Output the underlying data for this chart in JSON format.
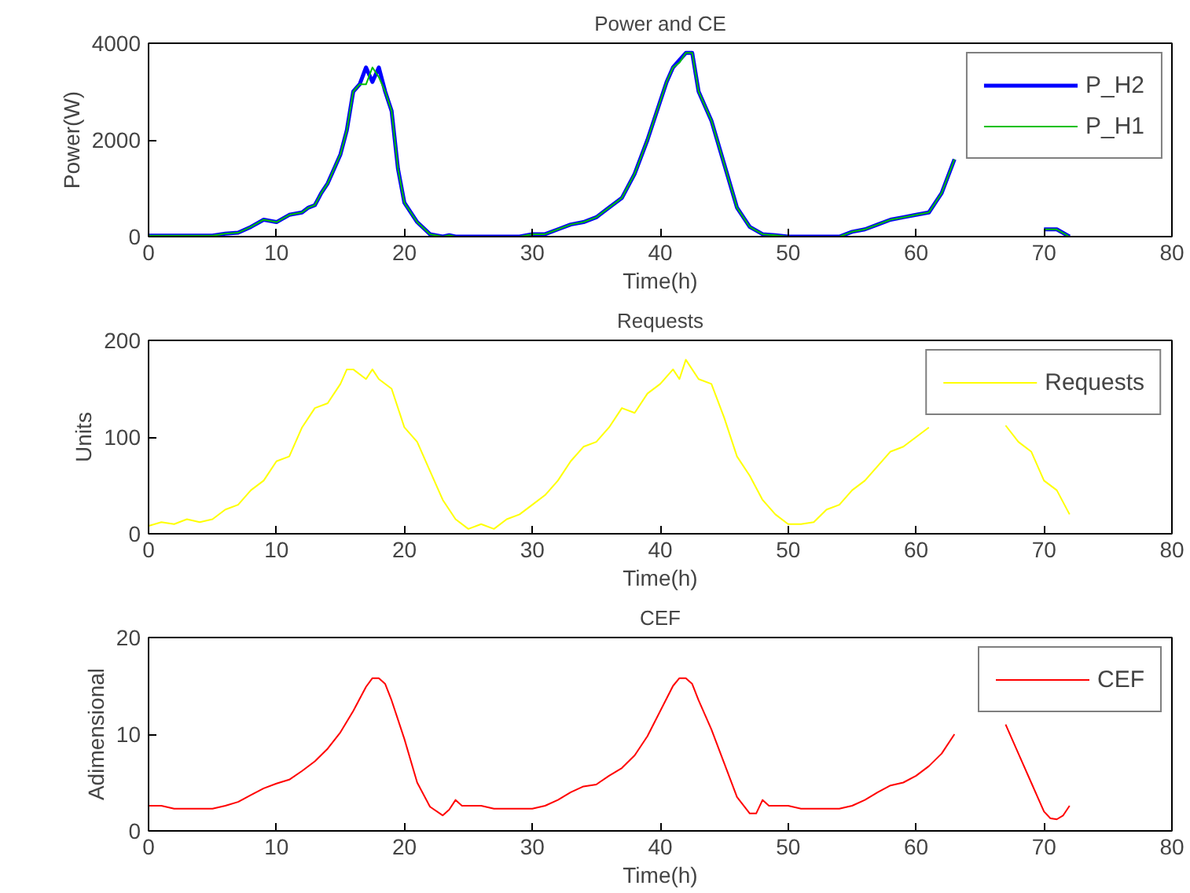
{
  "chart_data": [
    {
      "type": "line",
      "title": "Power and CE",
      "xlabel": "Time(h)",
      "ylabel": "Power(W)",
      "xlim": [
        0,
        80
      ],
      "ylim": [
        0,
        4000
      ],
      "xticks": [
        0,
        10,
        20,
        30,
        40,
        50,
        60,
        70,
        80
      ],
      "yticks": [
        0,
        2000,
        4000
      ],
      "grid": false,
      "legend": "top right",
      "x": [
        0,
        2,
        4,
        5,
        6,
        7,
        8,
        9,
        10,
        11,
        12,
        12.5,
        13,
        13.5,
        14,
        14.5,
        15,
        15.5,
        16,
        16.5,
        17,
        17.5,
        18,
        18.5,
        19,
        19.5,
        20,
        21,
        22,
        23,
        23.5,
        24,
        26,
        28,
        29,
        30,
        31,
        32,
        33,
        34,
        35,
        36,
        37,
        38,
        39,
        40,
        40.5,
        41,
        41.5,
        42,
        42.5,
        43,
        44,
        45,
        46,
        47,
        48,
        49,
        50,
        52,
        54,
        55,
        56,
        57,
        58,
        59,
        60,
        61,
        62,
        63,
        64,
        65,
        66,
        67,
        68,
        69,
        70,
        70.5,
        71,
        72
      ],
      "series": [
        {
          "name": "P_H2",
          "color": "#0000ff",
          "values": [
            20,
            20,
            20,
            20,
            60,
            80,
            200,
            350,
            300,
            450,
            500,
            600,
            650,
            900,
            1100,
            1400,
            1700,
            2200,
            3000,
            3150,
            3500,
            3200,
            3500,
            3000,
            2600,
            1400,
            700,
            300,
            50,
            0,
            30,
            0,
            0,
            0,
            0,
            50,
            50,
            150,
            250,
            300,
            400,
            600,
            800,
            1300,
            2000,
            2800,
            3200,
            3500,
            3650,
            3800,
            3800,
            3000,
            2400,
            1500,
            600,
            200,
            50,
            30,
            0,
            0,
            0,
            100,
            150,
            250,
            350,
            400,
            450,
            500,
            900,
            1600,
            null,
            null,
            null,
            null,
            null,
            null,
            150,
            150,
            150,
            0
          ]
        },
        {
          "name": "P_H1",
          "color": "#00c000",
          "values": [
            20,
            20,
            20,
            20,
            60,
            80,
            200,
            350,
            300,
            450,
            500,
            600,
            650,
            900,
            1100,
            1400,
            1700,
            2200,
            3000,
            3150,
            3150,
            3500,
            3300,
            3000,
            2600,
            1400,
            700,
            300,
            50,
            0,
            30,
            0,
            0,
            0,
            0,
            50,
            50,
            150,
            250,
            300,
            400,
            600,
            800,
            1300,
            2000,
            2800,
            3200,
            3500,
            3600,
            3800,
            3800,
            3000,
            2400,
            1500,
            600,
            200,
            50,
            30,
            0,
            0,
            0,
            100,
            150,
            250,
            350,
            400,
            450,
            500,
            900,
            1600,
            null,
            null,
            null,
            null,
            null,
            null,
            150,
            150,
            150,
            0
          ]
        }
      ]
    },
    {
      "type": "line",
      "title": "Requests",
      "xlabel": "Time(h)",
      "ylabel": "Units",
      "xlim": [
        0,
        80
      ],
      "ylim": [
        0,
        200
      ],
      "xticks": [
        0,
        10,
        20,
        30,
        40,
        50,
        60,
        70,
        80
      ],
      "yticks": [
        0,
        100,
        200
      ],
      "grid": false,
      "legend": "top right",
      "x": [
        0,
        1,
        2,
        3,
        4,
        5,
        6,
        7,
        8,
        9,
        10,
        11,
        12,
        13,
        14,
        15,
        15.5,
        16,
        17,
        17.5,
        18,
        19,
        20,
        21,
        22,
        23,
        24,
        25,
        26,
        27,
        28,
        29,
        30,
        31,
        32,
        33,
        34,
        35,
        36,
        37,
        38,
        39,
        40,
        41,
        41.5,
        42,
        43,
        44,
        45,
        46,
        47,
        48,
        49,
        50,
        51,
        52,
        53,
        54,
        55,
        56,
        57,
        58,
        59,
        60,
        61,
        62,
        63,
        64,
        65,
        66,
        67,
        68,
        69,
        70,
        71,
        72
      ],
      "series": [
        {
          "name": "Requests",
          "color": "#ffff00",
          "values": [
            8,
            12,
            10,
            15,
            12,
            15,
            25,
            30,
            45,
            55,
            75,
            80,
            110,
            130,
            135,
            155,
            170,
            170,
            160,
            170,
            160,
            150,
            110,
            95,
            65,
            35,
            15,
            5,
            10,
            5,
            15,
            20,
            30,
            40,
            55,
            75,
            90,
            95,
            110,
            130,
            125,
            145,
            155,
            170,
            160,
            180,
            160,
            155,
            120,
            80,
            60,
            35,
            20,
            10,
            10,
            12,
            25,
            30,
            45,
            55,
            70,
            85,
            90,
            100,
            110,
            null,
            null,
            null,
            null,
            null,
            112,
            95,
            85,
            55,
            45,
            20
          ]
        }
      ]
    },
    {
      "type": "line",
      "title": "CEF",
      "xlabel": "Time(h)",
      "ylabel": "Adimensional",
      "xlim": [
        0,
        80
      ],
      "ylim": [
        0,
        20
      ],
      "xticks": [
        0,
        10,
        20,
        30,
        40,
        50,
        60,
        70,
        80
      ],
      "yticks": [
        0,
        10,
        20
      ],
      "grid": false,
      "legend": "top right",
      "x": [
        0,
        1,
        2,
        3,
        5,
        6,
        7,
        8,
        9,
        10,
        11,
        12,
        13,
        14,
        15,
        16,
        17,
        17.5,
        18,
        18.5,
        19,
        20,
        21,
        22,
        23,
        23.5,
        24,
        24.5,
        26,
        27,
        30,
        31,
        32,
        33,
        34,
        35,
        36,
        37,
        38,
        39,
        40,
        41,
        41.5,
        42,
        42.5,
        43,
        44,
        45,
        46,
        47,
        47.5,
        48,
        48.5,
        50,
        51,
        54,
        55,
        56,
        57,
        58,
        59,
        60,
        61,
        62,
        63,
        64,
        65,
        66,
        67,
        68,
        69,
        70,
        70.5,
        71,
        71.5,
        72
      ],
      "series": [
        {
          "name": "CEF",
          "color": "#ff0000",
          "values": [
            2.6,
            2.6,
            2.3,
            2.3,
            2.3,
            2.6,
            3,
            3.7,
            4.4,
            4.9,
            5.3,
            6.2,
            7.2,
            8.5,
            10.2,
            12.4,
            14.9,
            15.8,
            15.8,
            15.2,
            13.5,
            9.5,
            5,
            2.5,
            1.6,
            2.2,
            3.2,
            2.6,
            2.6,
            2.3,
            2.3,
            2.6,
            3.2,
            4,
            4.6,
            4.8,
            5.7,
            6.5,
            7.8,
            9.8,
            12.4,
            15,
            15.8,
            15.8,
            15.2,
            13.5,
            10.5,
            7,
            3.5,
            1.8,
            1.8,
            3.2,
            2.6,
            2.6,
            2.3,
            2.3,
            2.6,
            3.2,
            4,
            4.7,
            5,
            5.7,
            6.7,
            8,
            10,
            null,
            null,
            null,
            11,
            8,
            5,
            2,
            1.3,
            1.2,
            1.6,
            2.6
          ]
        }
      ]
    }
  ]
}
